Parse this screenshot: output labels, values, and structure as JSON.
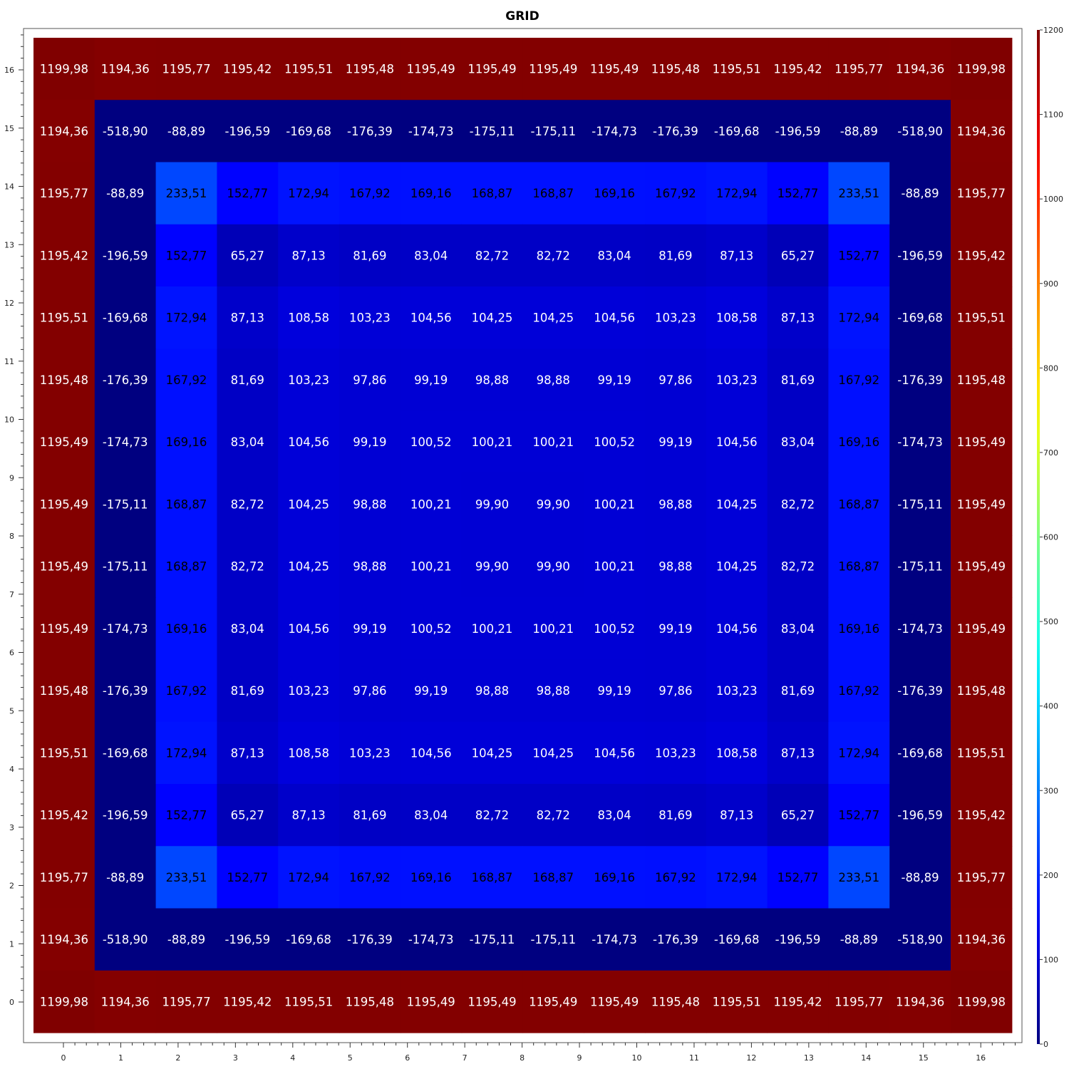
{
  "chart_data": {
    "type": "heatmap",
    "title": "GRID",
    "xlabel": "",
    "ylabel": "",
    "x_ticks": [
      0,
      1,
      2,
      3,
      4,
      5,
      6,
      7,
      8,
      9,
      10,
      11,
      12,
      13,
      14,
      15,
      16
    ],
    "y_ticks": [
      0,
      1,
      2,
      3,
      4,
      5,
      6,
      7,
      8,
      9,
      10,
      11,
      12,
      13,
      14,
      15,
      16
    ],
    "colorbar": {
      "min": 0,
      "max": 1200,
      "ticks": [
        0,
        100,
        200,
        300,
        400,
        500,
        600,
        700,
        800,
        900,
        1000,
        1100,
        1200
      ],
      "colormap": "jet"
    },
    "rows_top_to_bottom": [
      [
        "1199,98",
        "1194,36",
        "1195,77",
        "1195,42",
        "1195,51",
        "1195,48",
        "1195,49",
        "1195,49",
        "1195,49",
        "1195,49",
        "1195,48",
        "1195,51",
        "1195,42",
        "1195,77",
        "1194,36",
        "1199,98"
      ],
      [
        "1194,36",
        "-518,90",
        "-88,89",
        "-196,59",
        "-169,68",
        "-176,39",
        "-174,73",
        "-175,11",
        "-175,11",
        "-174,73",
        "-176,39",
        "-169,68",
        "-196,59",
        "-88,89",
        "-518,90",
        "1194,36"
      ],
      [
        "1195,77",
        "-88,89",
        "233,51",
        "152,77",
        "172,94",
        "167,92",
        "169,16",
        "168,87",
        "168,87",
        "169,16",
        "167,92",
        "172,94",
        "152,77",
        "233,51",
        "-88,89",
        "1195,77"
      ],
      [
        "1195,42",
        "-196,59",
        "152,77",
        "65,27",
        "87,13",
        "81,69",
        "83,04",
        "82,72",
        "82,72",
        "83,04",
        "81,69",
        "87,13",
        "65,27",
        "152,77",
        "-196,59",
        "1195,42"
      ],
      [
        "1195,51",
        "-169,68",
        "172,94",
        "87,13",
        "108,58",
        "103,23",
        "104,56",
        "104,25",
        "104,25",
        "104,56",
        "103,23",
        "108,58",
        "87,13",
        "172,94",
        "-169,68",
        "1195,51"
      ],
      [
        "1195,48",
        "-176,39",
        "167,92",
        "81,69",
        "103,23",
        "97,86",
        "99,19",
        "98,88",
        "98,88",
        "99,19",
        "97,86",
        "103,23",
        "81,69",
        "167,92",
        "-176,39",
        "1195,48"
      ],
      [
        "1195,49",
        "-174,73",
        "169,16",
        "83,04",
        "104,56",
        "99,19",
        "100,52",
        "100,21",
        "100,21",
        "100,52",
        "99,19",
        "104,56",
        "83,04",
        "169,16",
        "-174,73",
        "1195,49"
      ],
      [
        "1195,49",
        "-175,11",
        "168,87",
        "82,72",
        "104,25",
        "98,88",
        "100,21",
        "99,90",
        "99,90",
        "100,21",
        "98,88",
        "104,25",
        "82,72",
        "168,87",
        "-175,11",
        "1195,49"
      ],
      [
        "1195,49",
        "-175,11",
        "168,87",
        "82,72",
        "104,25",
        "98,88",
        "100,21",
        "99,90",
        "99,90",
        "100,21",
        "98,88",
        "104,25",
        "82,72",
        "168,87",
        "-175,11",
        "1195,49"
      ],
      [
        "1195,49",
        "-174,73",
        "169,16",
        "83,04",
        "104,56",
        "99,19",
        "100,52",
        "100,21",
        "100,21",
        "100,52",
        "99,19",
        "104,56",
        "83,04",
        "169,16",
        "-174,73",
        "1195,49"
      ],
      [
        "1195,48",
        "-176,39",
        "167,92",
        "81,69",
        "103,23",
        "97,86",
        "99,19",
        "98,88",
        "98,88",
        "99,19",
        "97,86",
        "103,23",
        "81,69",
        "167,92",
        "-176,39",
        "1195,48"
      ],
      [
        "1195,51",
        "-169,68",
        "172,94",
        "87,13",
        "108,58",
        "103,23",
        "104,56",
        "104,25",
        "104,25",
        "104,56",
        "103,23",
        "108,58",
        "87,13",
        "172,94",
        "-169,68",
        "1195,51"
      ],
      [
        "1195,42",
        "-196,59",
        "152,77",
        "65,27",
        "87,13",
        "81,69",
        "83,04",
        "82,72",
        "82,72",
        "83,04",
        "81,69",
        "87,13",
        "65,27",
        "152,77",
        "-196,59",
        "1195,42"
      ],
      [
        "1195,77",
        "-88,89",
        "233,51",
        "152,77",
        "172,94",
        "167,92",
        "169,16",
        "168,87",
        "168,87",
        "169,16",
        "167,92",
        "172,94",
        "152,77",
        "233,51",
        "-88,89",
        "1195,77"
      ],
      [
        "1194,36",
        "-518,90",
        "-88,89",
        "-196,59",
        "-169,68",
        "-176,39",
        "-174,73",
        "-175,11",
        "-175,11",
        "-174,73",
        "-176,39",
        "-169,68",
        "-196,59",
        "-88,89",
        "-518,90",
        "1194,36"
      ],
      [
        "1199,98",
        "1194,36",
        "1195,77",
        "1195,42",
        "1195,51",
        "1195,48",
        "1195,49",
        "1195,49",
        "1195,49",
        "1195,49",
        "1195,48",
        "1195,51",
        "1195,42",
        "1195,77",
        "1194,36",
        "1199,98"
      ]
    ]
  }
}
